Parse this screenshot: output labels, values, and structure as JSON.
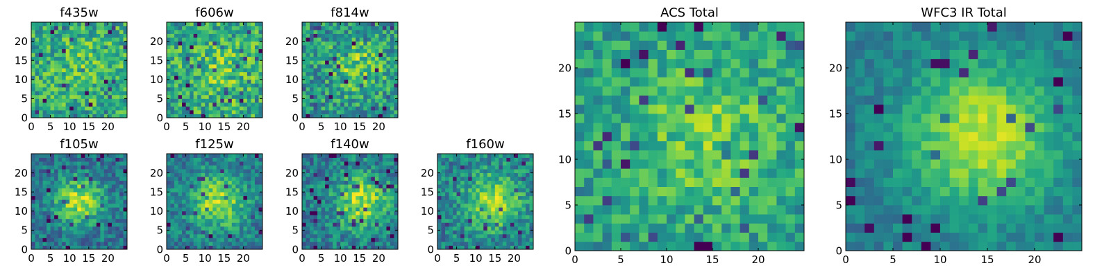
{
  "figure": {
    "description_free": true
  },
  "chart_data": [
    {
      "type": "heatmap",
      "title": "f435w",
      "xlabel": "",
      "ylabel": "",
      "xlim": [
        0,
        25
      ],
      "ylim": [
        0,
        25
      ],
      "xticks": [
        0,
        5,
        10,
        15,
        20
      ],
      "yticks": [
        0,
        5,
        10,
        15,
        20
      ],
      "grid_size": 25,
      "colormap": "viridis",
      "profile": {
        "peak": [
          14,
          13
        ],
        "sigma": 6,
        "amplitude": 0.12,
        "base": 0.6,
        "noise": 0.38
      },
      "seed": 11
    },
    {
      "type": "heatmap",
      "title": "f606w",
      "xlabel": "",
      "ylabel": "",
      "xlim": [
        0,
        25
      ],
      "ylim": [
        0,
        25
      ],
      "xticks": [
        0,
        5,
        10,
        15,
        20
      ],
      "yticks": [
        0,
        5,
        10,
        15,
        20
      ],
      "grid_size": 25,
      "colormap": "viridis",
      "profile": {
        "peak": [
          14,
          12
        ],
        "sigma": 6,
        "amplitude": 0.15,
        "base": 0.6,
        "noise": 0.4
      },
      "seed": 23
    },
    {
      "type": "heatmap",
      "title": "f814w",
      "xlabel": "",
      "ylabel": "",
      "xlim": [
        0,
        25
      ],
      "ylim": [
        0,
        25
      ],
      "xticks": [
        0,
        5,
        10,
        15,
        20
      ],
      "yticks": [
        0,
        5,
        10,
        15,
        20
      ],
      "grid_size": 25,
      "colormap": "viridis",
      "profile": {
        "peak": [
          14,
          13
        ],
        "sigma": 5,
        "amplitude": 0.25,
        "base": 0.52,
        "noise": 0.4
      },
      "seed": 37
    },
    {
      "type": "heatmap",
      "title": "f105w",
      "xlabel": "",
      "ylabel": "",
      "xlim": [
        0,
        25
      ],
      "ylim": [
        0,
        25
      ],
      "xticks": [
        0,
        5,
        10,
        15,
        20
      ],
      "yticks": [
        0,
        5,
        10,
        15,
        20
      ],
      "grid_size": 25,
      "colormap": "viridis",
      "profile": {
        "peak": [
          12,
          12
        ],
        "sigma": 4.5,
        "amplitude": 0.5,
        "base": 0.38,
        "noise": 0.3
      },
      "seed": 41
    },
    {
      "type": "heatmap",
      "title": "f125w",
      "xlabel": "",
      "ylabel": "",
      "xlim": [
        0,
        25
      ],
      "ylim": [
        0,
        25
      ],
      "xticks": [
        0,
        5,
        10,
        15,
        20
      ],
      "yticks": [
        0,
        5,
        10,
        15,
        20
      ],
      "grid_size": 25,
      "colormap": "viridis",
      "profile": {
        "peak": [
          13,
          12
        ],
        "sigma": 5,
        "amplitude": 0.45,
        "base": 0.42,
        "noise": 0.3
      },
      "seed": 53
    },
    {
      "type": "heatmap",
      "title": "f140w",
      "xlabel": "",
      "ylabel": "",
      "xlim": [
        0,
        25
      ],
      "ylim": [
        0,
        25
      ],
      "xticks": [
        0,
        5,
        10,
        15,
        20
      ],
      "yticks": [
        0,
        5,
        10,
        15,
        20
      ],
      "grid_size": 25,
      "colormap": "viridis",
      "profile": {
        "peak": [
          15,
          12
        ],
        "sigma": 5,
        "amplitude": 0.45,
        "base": 0.42,
        "noise": 0.32
      },
      "seed": 67
    },
    {
      "type": "heatmap",
      "title": "f160w",
      "xlabel": "",
      "ylabel": "",
      "xlim": [
        0,
        25
      ],
      "ylim": [
        0,
        25
      ],
      "xticks": [
        0,
        5,
        10,
        15,
        20
      ],
      "yticks": [
        0,
        5,
        10,
        15,
        20
      ],
      "grid_size": 25,
      "colormap": "viridis",
      "profile": {
        "peak": [
          14,
          12
        ],
        "sigma": 5,
        "amplitude": 0.42,
        "base": 0.45,
        "noise": 0.32
      },
      "seed": 79
    },
    {
      "type": "heatmap",
      "title": "ACS Total",
      "xlabel": "",
      "ylabel": "",
      "xlim": [
        0,
        25
      ],
      "ylim": [
        0,
        25
      ],
      "xticks": [
        0,
        5,
        10,
        15,
        20
      ],
      "yticks": [
        0,
        5,
        10,
        15,
        20
      ],
      "grid_size": 25,
      "colormap": "viridis",
      "profile": {
        "peak": [
          14,
          12
        ],
        "sigma": 6,
        "amplitude": 0.22,
        "base": 0.55,
        "noise": 0.3
      },
      "seed": 97
    },
    {
      "type": "heatmap",
      "title": "WFC3 IR Total",
      "xlabel": "",
      "ylabel": "",
      "xlim": [
        0,
        25
      ],
      "ylim": [
        0,
        25
      ],
      "xticks": [
        0,
        5,
        10,
        15,
        20
      ],
      "yticks": [
        0,
        5,
        10,
        15,
        20
      ],
      "grid_size": 25,
      "colormap": "viridis",
      "profile": {
        "peak": [
          14,
          12
        ],
        "sigma": 5.5,
        "amplitude": 0.5,
        "base": 0.42,
        "noise": 0.18
      },
      "seed": 113
    }
  ]
}
